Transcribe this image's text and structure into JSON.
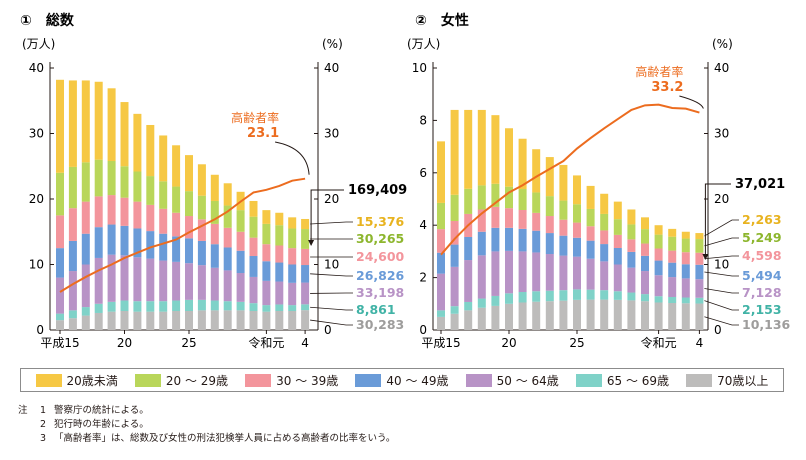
{
  "series_colors": [
    "#f6c844",
    "#b9d65a",
    "#f3959c",
    "#6a9bd8",
    "#b893c6",
    "#7fd2c8",
    "#bdbcbb"
  ],
  "line_color": "#ec6c1f",
  "chart_data": [
    {
      "type": "bar",
      "panel_label": "①　総数",
      "y_left_unit": "(万人)",
      "y_right_unit": "(%)",
      "ylim": [
        0,
        40
      ],
      "y_left_ticks": [
        "0",
        "10",
        "20",
        "30",
        "40"
      ],
      "y_right_ticks": [
        "0",
        "10",
        "20",
        "30",
        "40"
      ],
      "x_tick_labels": [
        "平成15",
        "20",
        "25",
        "令和元",
        "4"
      ],
      "x_tick_index": [
        0,
        5,
        10,
        16,
        19
      ],
      "categories": [
        "H15",
        "H16",
        "H17",
        "H18",
        "H19",
        "H20",
        "H21",
        "H22",
        "H23",
        "H24",
        "H25",
        "H26",
        "H27",
        "H28",
        "H29",
        "H30",
        "R1",
        "R2",
        "R3",
        "R4"
      ],
      "series": [
        {
          "name": "70歳以上",
          "values": [
            1.5,
            1.8,
            2.2,
            2.6,
            2.8,
            2.9,
            2.8,
            2.8,
            2.8,
            2.9,
            2.9,
            3.0,
            3.0,
            3.0,
            3.0,
            2.9,
            2.8,
            2.9,
            2.9,
            3.03
          ]
        },
        {
          "name": "65～69歳",
          "values": [
            1.0,
            1.2,
            1.3,
            1.4,
            1.5,
            1.6,
            1.6,
            1.6,
            1.6,
            1.6,
            1.7,
            1.6,
            1.5,
            1.4,
            1.3,
            1.2,
            1.0,
            1.0,
            0.9,
            0.89
          ]
        },
        {
          "name": "50～64歳",
          "values": [
            5.5,
            6.0,
            6.5,
            7.0,
            7.2,
            6.9,
            6.7,
            6.5,
            6.2,
            5.9,
            5.6,
            5.3,
            5.0,
            4.7,
            4.4,
            4.0,
            3.7,
            3.5,
            3.4,
            3.32
          ]
        },
        {
          "name": "40～49歳",
          "values": [
            4.5,
            4.6,
            4.7,
            4.7,
            4.6,
            4.5,
            4.4,
            4.2,
            4.1,
            3.9,
            3.8,
            3.7,
            3.6,
            3.5,
            3.4,
            3.2,
            3.0,
            2.9,
            2.8,
            2.68
          ]
        },
        {
          "name": "30～39歳",
          "values": [
            5.0,
            5.0,
            4.9,
            4.7,
            4.5,
            4.3,
            4.1,
            4.0,
            3.8,
            3.6,
            3.4,
            3.3,
            3.1,
            3.0,
            2.9,
            2.8,
            2.6,
            2.6,
            2.5,
            2.46
          ]
        },
        {
          "name": "20～29歳",
          "values": [
            6.5,
            6.3,
            6.0,
            5.6,
            5.2,
            4.8,
            4.6,
            4.4,
            4.2,
            4.0,
            3.8,
            3.6,
            3.5,
            3.4,
            3.3,
            3.2,
            3.1,
            3.1,
            3.0,
            3.03
          ]
        },
        {
          "name": "20歳未満",
          "values": [
            14.2,
            13.2,
            12.5,
            11.9,
            11.1,
            9.8,
            8.8,
            7.8,
            7.0,
            6.3,
            5.5,
            4.8,
            4.0,
            3.4,
            2.8,
            2.4,
            2.1,
            1.9,
            1.7,
            1.54
          ]
        }
      ],
      "elderly_rate": [
        5.8,
        7.0,
        8.1,
        9.1,
        10.0,
        11.0,
        11.8,
        12.6,
        13.2,
        13.8,
        14.9,
        15.9,
        16.9,
        18.1,
        19.6,
        21.0,
        21.4,
        22.0,
        22.8,
        23.1
      ],
      "rate_label": "高齢者率",
      "rate_value": "23.1",
      "total_label": "169,409",
      "value_labels": [
        {
          "text": "15,376",
          "series": "20歳未満"
        },
        {
          "text": "30,265",
          "series": "20～29歳"
        },
        {
          "text": "24,600",
          "series": "30～39歳"
        },
        {
          "text": "26,826",
          "series": "40～49歳"
        },
        {
          "text": "33,198",
          "series": "50～64歳"
        },
        {
          "text": "8,861",
          "series": "65～69歳"
        },
        {
          "text": "30,283",
          "series": "70歳以上"
        }
      ]
    },
    {
      "type": "bar",
      "panel_label": "②　女性",
      "y_left_unit": "(万人)",
      "y_right_unit": "(%)",
      "ylim": [
        0,
        10
      ],
      "right_ylim": [
        0,
        40
      ],
      "y_left_ticks": [
        "0",
        "2",
        "4",
        "6",
        "8",
        "10"
      ],
      "y_right_ticks": [
        "0",
        "10",
        "20",
        "30",
        "40"
      ],
      "x_tick_labels": [
        "平成15",
        "20",
        "25",
        "令和元",
        "4"
      ],
      "x_tick_index": [
        0,
        5,
        10,
        16,
        19
      ],
      "categories": [
        "H15",
        "H16",
        "H17",
        "H18",
        "H19",
        "H20",
        "H21",
        "H22",
        "H23",
        "H24",
        "H25",
        "H26",
        "H27",
        "H28",
        "H29",
        "H30",
        "R1",
        "R2",
        "R3",
        "R4"
      ],
      "series": [
        {
          "name": "70歳以上",
          "values": [
            0.5,
            0.62,
            0.75,
            0.85,
            0.92,
            1.0,
            1.05,
            1.08,
            1.1,
            1.12,
            1.15,
            1.16,
            1.16,
            1.15,
            1.13,
            1.1,
            1.05,
            1.03,
            1.02,
            1.01
          ]
        },
        {
          "name": "65～69歳",
          "values": [
            0.25,
            0.29,
            0.32,
            0.35,
            0.38,
            0.4,
            0.4,
            0.4,
            0.4,
            0.4,
            0.4,
            0.38,
            0.36,
            0.33,
            0.3,
            0.27,
            0.24,
            0.23,
            0.22,
            0.22
          ]
        },
        {
          "name": "50～64歳",
          "values": [
            1.4,
            1.5,
            1.6,
            1.65,
            1.7,
            1.62,
            1.55,
            1.48,
            1.4,
            1.32,
            1.25,
            1.18,
            1.1,
            1.02,
            0.95,
            0.88,
            0.8,
            0.76,
            0.73,
            0.71
          ]
        },
        {
          "name": "40～49歳",
          "values": [
            0.8,
            0.85,
            0.88,
            0.9,
            0.9,
            0.88,
            0.86,
            0.83,
            0.8,
            0.76,
            0.72,
            0.69,
            0.66,
            0.63,
            0.6,
            0.58,
            0.56,
            0.55,
            0.54,
            0.55
          ]
        },
        {
          "name": "30～39歳",
          "values": [
            0.9,
            0.9,
            0.88,
            0.85,
            0.8,
            0.75,
            0.72,
            0.68,
            0.65,
            0.61,
            0.58,
            0.55,
            0.52,
            0.5,
            0.48,
            0.47,
            0.46,
            0.46,
            0.46,
            0.46
          ]
        },
        {
          "name": "20～29歳",
          "values": [
            1.0,
            1.0,
            0.96,
            0.92,
            0.88,
            0.82,
            0.8,
            0.78,
            0.76,
            0.73,
            0.7,
            0.66,
            0.63,
            0.6,
            0.57,
            0.55,
            0.53,
            0.53,
            0.52,
            0.52
          ]
        },
        {
          "name": "20歳未満",
          "values": [
            2.35,
            3.24,
            3.01,
            2.88,
            2.62,
            2.23,
            1.92,
            1.65,
            1.49,
            1.36,
            1.1,
            0.88,
            0.77,
            0.67,
            0.57,
            0.45,
            0.36,
            0.3,
            0.26,
            0.23
          ]
        }
      ],
      "elderly_rate": [
        11.5,
        13.9,
        16.0,
        17.8,
        19.4,
        21.0,
        22.1,
        23.4,
        24.6,
        25.8,
        27.7,
        29.3,
        30.8,
        32.2,
        33.6,
        34.3,
        34.4,
        33.9,
        33.8,
        33.2
      ],
      "rate_label": "高齢者率",
      "rate_value": "33.2",
      "total_label": "37,021",
      "value_labels": [
        {
          "text": "2,263",
          "series": "20歳未満"
        },
        {
          "text": "5,249",
          "series": "20～29歳"
        },
        {
          "text": "4,598",
          "series": "30～39歳"
        },
        {
          "text": "5,494",
          "series": "40～49歳"
        },
        {
          "text": "7,128",
          "series": "50～64歳"
        },
        {
          "text": "2,153",
          "series": "65～69歳"
        },
        {
          "text": "10,136",
          "series": "70歳以上"
        }
      ]
    }
  ],
  "legend": [
    {
      "label": "20歳未満"
    },
    {
      "label": "20 ～ 29歳"
    },
    {
      "label": "30 ～ 39歳"
    },
    {
      "label": "40 ～ 49歳"
    },
    {
      "label": "50 ～ 64歳"
    },
    {
      "label": "65 ～ 69歳"
    },
    {
      "label": "70歳以上"
    }
  ],
  "notes": [
    {
      "head": "注",
      "num": "1",
      "text": "警察庁の統計による。"
    },
    {
      "head": "",
      "num": "2",
      "text": "犯行時の年齢による。"
    },
    {
      "head": "",
      "num": "3",
      "text": "「高齢者率」は、総数及び女性の刑法犯検挙人員に占める高齢者の比率をいう。"
    }
  ]
}
